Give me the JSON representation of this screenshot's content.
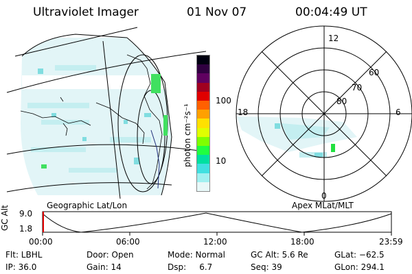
{
  "header": {
    "instrument": "Ultraviolet Imager",
    "date": "01 Nov 07",
    "time": "00:04:49 UT"
  },
  "geo_panel": {
    "label": "Geographic Lat/Lon"
  },
  "colorbar": {
    "unit_label": "photon cm⁻²s⁻¹",
    "tick_labels": [
      "100",
      "10"
    ],
    "colors": [
      "#000010",
      "#300040",
      "#600060",
      "#a00020",
      "#e00000",
      "#ff6000",
      "#ffa000",
      "#ffe000",
      "#e0ff00",
      "#80ff00",
      "#20ff40",
      "#00e0a0",
      "#40e0e0",
      "#a0f0f0",
      "#e8f8f8"
    ]
  },
  "polar_panel": {
    "label": "Apex MLat/MLT",
    "mlt_labels": {
      "top": "12",
      "left": "18",
      "right": "6",
      "bottom": "0"
    },
    "lat_labels": [
      "60",
      "70",
      "80"
    ]
  },
  "timeline": {
    "ylabel": "GC Alt",
    "y_ticks": [
      "9.0",
      "1.8"
    ],
    "x_ticks": [
      "00:00",
      "06:00",
      "12:00",
      "18:00",
      "23:59"
    ],
    "marker_color": "#e00000"
  },
  "footer": {
    "flt": "Flt: LBHL",
    "door": "Door: Open",
    "mode": "Mode: Normal",
    "gc_alt": "GC Alt: 5.6 Re",
    "glat": "GLat: −62.5",
    "ip": "IP: 36.0",
    "gain": "Gain: 14",
    "dsp": "Dsp:     6.7",
    "seq": "Seq: 39",
    "glon": "GLon: 294.1"
  }
}
